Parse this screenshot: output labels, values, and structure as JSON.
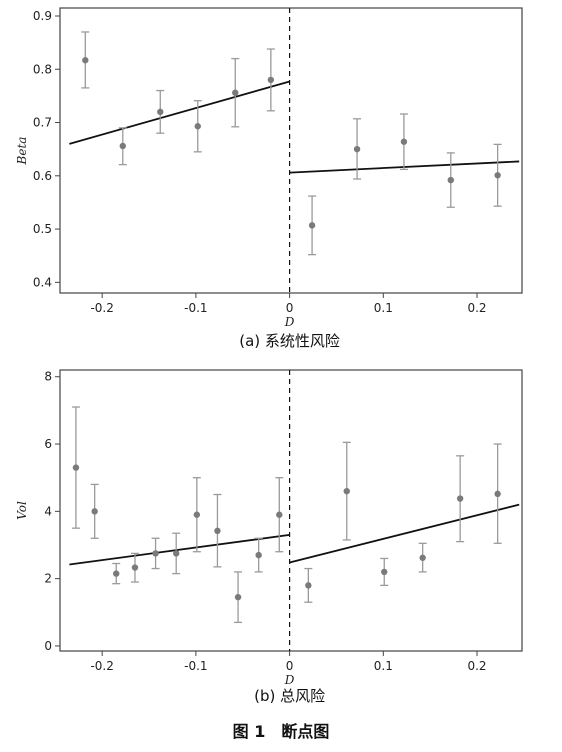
{
  "figure": {
    "title": "图 1　断点图"
  },
  "chart_data": [
    {
      "type": "scatter",
      "caption": "(a) 系统性风险",
      "xlabel": "D",
      "ylabel": "Beta",
      "xlim": [
        -0.245,
        0.248
      ],
      "ylim": [
        0.38,
        0.915
      ],
      "x_ticks": [
        -0.2,
        -0.1,
        0,
        0.1,
        0.2
      ],
      "x_tick_labels": [
        "-0.2",
        "-0.1",
        "0",
        "0.1",
        "0.2"
      ],
      "y_ticks": [
        0.4,
        0.5,
        0.6,
        0.7,
        0.8,
        0.9
      ],
      "y_tick_labels": [
        "0.4",
        "0.5",
        "0.6",
        "0.7",
        "0.8",
        "0.9"
      ],
      "cutoff": 0,
      "points": [
        {
          "x": -0.218,
          "y": 0.817,
          "lo": 0.765,
          "hi": 0.87
        },
        {
          "x": -0.178,
          "y": 0.656,
          "lo": 0.621,
          "hi": 0.69
        },
        {
          "x": -0.138,
          "y": 0.72,
          "lo": 0.68,
          "hi": 0.76
        },
        {
          "x": -0.098,
          "y": 0.693,
          "lo": 0.645,
          "hi": 0.741
        },
        {
          "x": -0.058,
          "y": 0.756,
          "lo": 0.692,
          "hi": 0.82
        },
        {
          "x": -0.02,
          "y": 0.78,
          "lo": 0.722,
          "hi": 0.838
        },
        {
          "x": 0.024,
          "y": 0.507,
          "lo": 0.452,
          "hi": 0.562
        },
        {
          "x": 0.072,
          "y": 0.65,
          "lo": 0.594,
          "hi": 0.707
        },
        {
          "x": 0.122,
          "y": 0.664,
          "lo": 0.612,
          "hi": 0.716
        },
        {
          "x": 0.172,
          "y": 0.592,
          "lo": 0.541,
          "hi": 0.643
        },
        {
          "x": 0.222,
          "y": 0.601,
          "lo": 0.543,
          "hi": 0.659
        }
      ],
      "fit_lines": [
        {
          "segment": "left",
          "x": [
            -0.235,
            0
          ],
          "y": [
            0.66,
            0.777
          ]
        },
        {
          "segment": "right",
          "x": [
            0,
            0.245
          ],
          "y": [
            0.606,
            0.627
          ]
        }
      ]
    },
    {
      "type": "scatter",
      "caption": "(b) 总风险",
      "xlabel": "D",
      "ylabel": "Vol",
      "xlim": [
        -0.245,
        0.248
      ],
      "ylim": [
        -0.15,
        8.2
      ],
      "x_ticks": [
        -0.2,
        -0.1,
        0,
        0.1,
        0.2
      ],
      "x_tick_labels": [
        "-0.2",
        "-0.1",
        "0",
        "0.1",
        "0.2"
      ],
      "y_ticks": [
        0,
        2,
        4,
        6,
        8
      ],
      "y_tick_labels": [
        "0",
        "2",
        "4",
        "6",
        "8"
      ],
      "cutoff": 0,
      "points": [
        {
          "x": -0.228,
          "y": 5.3,
          "lo": 3.5,
          "hi": 7.1
        },
        {
          "x": -0.208,
          "y": 4.0,
          "lo": 3.2,
          "hi": 4.8
        },
        {
          "x": -0.185,
          "y": 2.15,
          "lo": 1.85,
          "hi": 2.45
        },
        {
          "x": -0.165,
          "y": 2.33,
          "lo": 1.9,
          "hi": 2.75
        },
        {
          "x": -0.143,
          "y": 2.75,
          "lo": 2.3,
          "hi": 3.2
        },
        {
          "x": -0.121,
          "y": 2.75,
          "lo": 2.15,
          "hi": 3.35
        },
        {
          "x": -0.099,
          "y": 3.9,
          "lo": 2.8,
          "hi": 5.0
        },
        {
          "x": -0.077,
          "y": 3.42,
          "lo": 2.35,
          "hi": 4.5
        },
        {
          "x": -0.055,
          "y": 1.45,
          "lo": 0.7,
          "hi": 2.2
        },
        {
          "x": -0.033,
          "y": 2.7,
          "lo": 2.2,
          "hi": 3.2
        },
        {
          "x": -0.011,
          "y": 3.9,
          "lo": 2.8,
          "hi": 5.0
        },
        {
          "x": 0.02,
          "y": 1.8,
          "lo": 1.3,
          "hi": 2.3
        },
        {
          "x": 0.061,
          "y": 4.6,
          "lo": 3.15,
          "hi": 6.05
        },
        {
          "x": 0.101,
          "y": 2.2,
          "lo": 1.8,
          "hi": 2.6
        },
        {
          "x": 0.142,
          "y": 2.62,
          "lo": 2.2,
          "hi": 3.05
        },
        {
          "x": 0.182,
          "y": 4.38,
          "lo": 3.1,
          "hi": 5.65
        },
        {
          "x": 0.222,
          "y": 4.52,
          "lo": 3.05,
          "hi": 6.0
        }
      ],
      "fit_lines": [
        {
          "segment": "left",
          "x": [
            -0.235,
            0
          ],
          "y": [
            2.42,
            3.3
          ]
        },
        {
          "segment": "right",
          "x": [
            0,
            0.245
          ],
          "y": [
            2.48,
            4.2
          ]
        }
      ]
    }
  ]
}
